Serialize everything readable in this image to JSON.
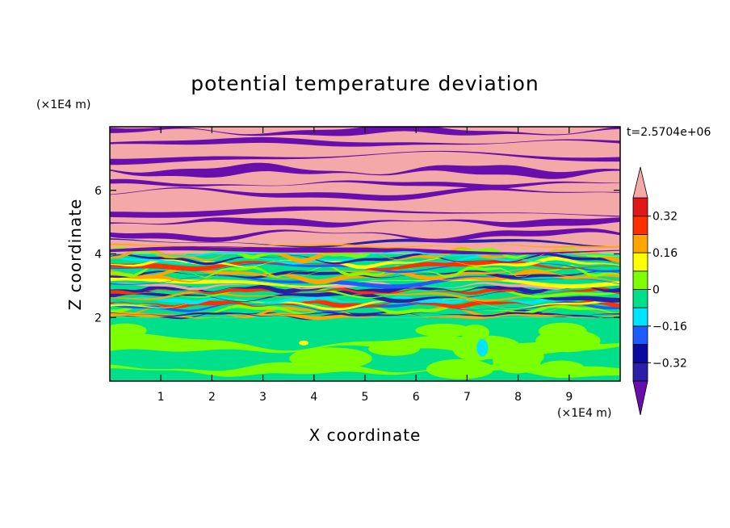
{
  "chart_data": {
    "type": "heatmap",
    "title": "potential temperature deviation",
    "xlabel": "X coordinate",
    "ylabel": "Z coordinate",
    "x_unit": "(×1E4 m)",
    "y_unit": "(×1E4 m)",
    "time_label": "t=2.5704e+06",
    "xlim": [
      0,
      10
    ],
    "ylim": [
      0,
      8
    ],
    "x_ticks": [
      1,
      2,
      3,
      4,
      5,
      6,
      7,
      8,
      9
    ],
    "y_ticks": [
      2,
      4,
      6
    ],
    "colorbar": {
      "levels": [
        -0.4,
        -0.32,
        -0.24,
        -0.16,
        -0.08,
        0,
        0.08,
        0.16,
        0.24,
        0.32,
        0.4
      ],
      "colors": [
        "#6a0dad",
        "#2b1fa8",
        "#0a0aa0",
        "#1e5cff",
        "#00e5ff",
        "#00e08a",
        "#7cff00",
        "#ffff00",
        "#ffa500",
        "#ff3000",
        "#e01818",
        "#f4a9a9"
      ],
      "tick_labels": [
        "0.32",
        "0.16",
        "0",
        "-0.16",
        "-0.32"
      ],
      "tick_values": [
        0.32,
        0.16,
        0,
        -0.16,
        -0.32
      ]
    }
  }
}
